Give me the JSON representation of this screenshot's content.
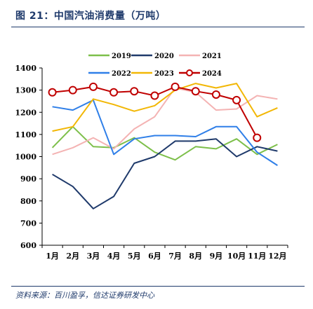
{
  "header": {
    "title": "图 21：中国汽油消费量（万吨）"
  },
  "footer": {
    "source": "资料来源：百川盈孚，信达证券研发中心"
  },
  "chart_data": {
    "type": "line",
    "title": "",
    "xlabel": "",
    "ylabel": "",
    "ylim": [
      600,
      1400
    ],
    "yticks": [
      600,
      700,
      800,
      900,
      1000,
      1100,
      1200,
      1300,
      1400
    ],
    "categories": [
      "1月",
      "2月",
      "3月",
      "4月",
      "5月",
      "6月",
      "7月",
      "8月",
      "9月",
      "10月",
      "11月",
      "12月"
    ],
    "grid": false,
    "legend_position": "top",
    "series": [
      {
        "name": "2019",
        "color": "#7dbf4a",
        "marker": "none",
        "values": [
          1040,
          1135,
          1045,
          1040,
          1085,
          1020,
          985,
          1045,
          1035,
          1080,
          1010,
          1055
        ]
      },
      {
        "name": "2020",
        "color": "#1f3a6b",
        "marker": "none",
        "values": [
          920,
          865,
          765,
          820,
          970,
          1000,
          1070,
          1070,
          1080,
          1000,
          1045,
          1025
        ]
      },
      {
        "name": "2021",
        "color": "#f4b3b3",
        "marker": "none",
        "values": [
          1010,
          1040,
          1085,
          1035,
          1125,
          1180,
          1310,
          1290,
          1210,
          1215,
          1275,
          1260
        ]
      },
      {
        "name": "2022",
        "color": "#2f7fe8",
        "marker": "none",
        "values": [
          1225,
          1210,
          1255,
          1010,
          1080,
          1095,
          1095,
          1090,
          1135,
          1135,
          1020,
          960
        ]
      },
      {
        "name": "2023",
        "color": "#f2b705",
        "marker": "none",
        "values": [
          1115,
          1135,
          1260,
          1235,
          1205,
          1230,
          1300,
          1330,
          1310,
          1330,
          1180,
          1220
        ]
      },
      {
        "name": "2024",
        "color": "#c00000",
        "marker": "circle",
        "values": [
          1290,
          1300,
          1315,
          1290,
          1295,
          1275,
          1315,
          1295,
          1280,
          1255,
          1085,
          null
        ]
      }
    ]
  }
}
